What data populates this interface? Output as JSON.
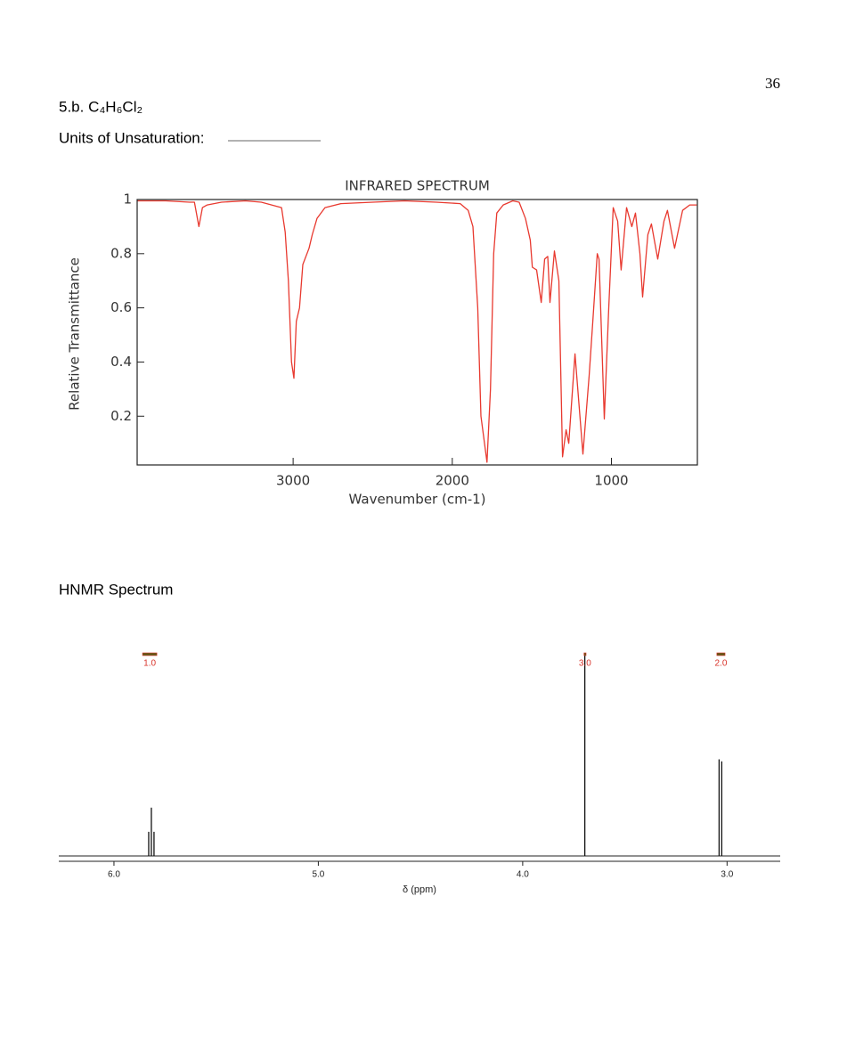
{
  "page_number": "36",
  "heading": "5.b.  C₄H₆Cl₂",
  "question": "Units of Unsaturation:",
  "section_title": "HNMR Spectrum",
  "chart_data": [
    {
      "type": "line",
      "title": "INFRARED SPECTRUM",
      "x_label": "Wavenumber (cm-1)",
      "y_label": "Relative Transmittance",
      "color": "#e8392f",
      "x": [
        3980,
        3800,
        3650,
        3620,
        3592,
        3570,
        3540,
        3450,
        3300,
        3200,
        3073,
        3050,
        3030,
        3010,
        2995,
        2980,
        2960,
        2939,
        2900,
        2880,
        2850,
        2800,
        2700,
        2500,
        2300,
        2100,
        1950,
        1900,
        1870,
        1840,
        1820,
        1782,
        1760,
        1740,
        1720,
        1680,
        1620,
        1580,
        1540,
        1510,
        1497,
        1470,
        1441,
        1420,
        1400,
        1386,
        1358,
        1330,
        1307,
        1285,
        1268,
        1229,
        1179,
        1140,
        1117,
        1089,
        1078,
        1045,
        1017,
        989,
        961,
        939,
        905,
        872,
        849,
        821,
        804,
        771,
        749,
        709,
        670,
        648,
        603,
        553,
        508,
        464
      ],
      "values": [
        0.995,
        0.995,
        0.99,
        0.99,
        0.9,
        0.97,
        0.98,
        0.99,
        0.995,
        0.99,
        0.97,
        0.88,
        0.7,
        0.4,
        0.34,
        0.55,
        0.6,
        0.76,
        0.82,
        0.87,
        0.93,
        0.97,
        0.985,
        0.99,
        0.995,
        0.99,
        0.985,
        0.96,
        0.9,
        0.6,
        0.2,
        0.03,
        0.3,
        0.8,
        0.95,
        0.98,
        0.995,
        0.99,
        0.93,
        0.85,
        0.75,
        0.74,
        0.62,
        0.78,
        0.79,
        0.62,
        0.81,
        0.7,
        0.05,
        0.15,
        0.1,
        0.43,
        0.06,
        0.35,
        0.55,
        0.8,
        0.78,
        0.19,
        0.6,
        0.97,
        0.92,
        0.74,
        0.97,
        0.9,
        0.95,
        0.8,
        0.64,
        0.87,
        0.91,
        0.78,
        0.92,
        0.96,
        0.82,
        0.96,
        0.98,
        0.98
      ],
      "xlim": [
        3980,
        460
      ],
      "ylim": [
        0.02,
        1
      ],
      "xticks": [
        3000,
        2000,
        1000
      ],
      "yticks": [
        1,
        0.8,
        0.6,
        0.4,
        0.2
      ]
    },
    {
      "type": "stem",
      "x_label": "δ (ppm)",
      "color": "#111111",
      "x": [
        5.83,
        5.817,
        5.804,
        3.696,
        3.039,
        3.026
      ],
      "values": [
        12,
        24,
        12,
        100,
        48,
        47
      ],
      "xlim": [
        6.27,
        2.74
      ],
      "ylim": [
        0,
        100
      ],
      "xticks": [
        {
          "value": 6,
          "label": "6.0"
        },
        {
          "value": 5,
          "label": "5.0"
        },
        {
          "value": 4,
          "label": "4.0"
        },
        {
          "value": 3,
          "label": "3.0"
        }
      ],
      "integrals": [
        {
          "label": "1.0",
          "from": 5.86,
          "to": 5.79
        },
        {
          "label": "3.0",
          "from": 3.7,
          "to": 3.69
        },
        {
          "label": "2.0",
          "from": 3.05,
          "to": 3.01
        }
      ],
      "integral_color": "#d9342b"
    }
  ]
}
